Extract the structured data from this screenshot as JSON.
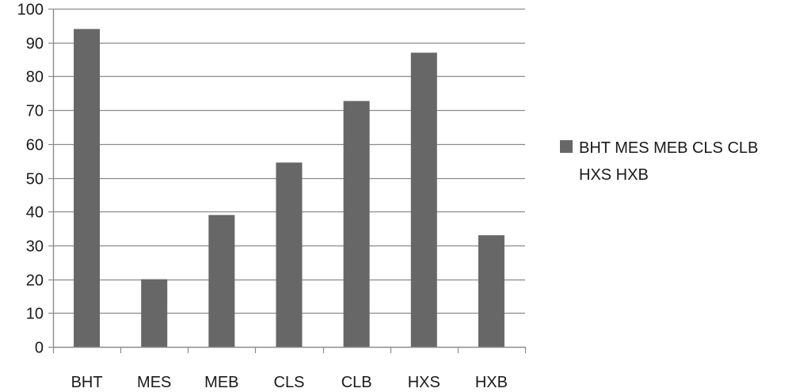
{
  "chart_data": {
    "type": "bar",
    "categories": [
      "BHT",
      "MES",
      "MEB",
      "CLS",
      "CLB",
      "HXS",
      "HXB"
    ],
    "series": [
      {
        "name": "BHT MES MEB CLS CLB HXS HXB",
        "values": [
          94,
          20,
          39,
          54.5,
          72.7,
          87,
          33
        ]
      }
    ],
    "title": "",
    "xlabel": "",
    "ylabel": "",
    "ylim": [
      0,
      100
    ],
    "yticks": [
      0,
      10,
      20,
      30,
      40,
      50,
      60,
      70,
      80,
      90,
      100
    ],
    "grid": true,
    "legend": {
      "position": "right",
      "lines": [
        "BHT MES MEB CLS CLB",
        "HXS HXB"
      ]
    },
    "colors": {
      "bar": "#676767",
      "grid": "#8c8c8c",
      "axis": "#8c8c8c"
    }
  }
}
